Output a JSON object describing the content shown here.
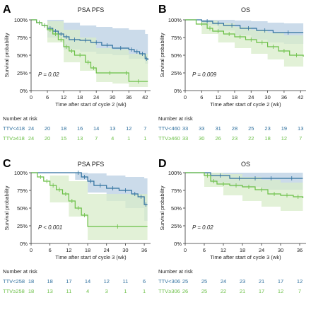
{
  "colors": {
    "high": "#2e6f9e",
    "low": "#6abf45",
    "high_band": "#b9cfe3",
    "low_band": "#d8ecc9",
    "axis": "#333333"
  },
  "risk_header": "Number at risk",
  "chart_data": [
    {
      "panel_label": "A",
      "title": "PSA PFS",
      "type": "line",
      "xlabel": "Time after start of cycle 2 (wk)",
      "ylabel": "Survival probability",
      "xlim": [
        0,
        44
      ],
      "ylim": [
        0,
        100
      ],
      "xticks": [
        "0",
        "6",
        "12",
        "18",
        "24",
        "30",
        "36",
        "42"
      ],
      "yticks": [
        "0%",
        "25%",
        "50%",
        "75%",
        "100%"
      ],
      "pvalue": "P = 0.02",
      "series": [
        {
          "name": "TTV<418",
          "color": "#2e6f9e",
          "x": [
            0,
            2,
            4,
            6,
            8,
            10,
            12,
            14,
            18,
            22,
            26,
            30,
            36,
            38,
            40,
            42,
            43
          ],
          "y": [
            100,
            96,
            92,
            88,
            84,
            80,
            76,
            72,
            71,
            68,
            64,
            60,
            58,
            55,
            52,
            45,
            43
          ],
          "band": [
            [
              0,
              100,
              100
            ],
            [
              6,
              100,
              75
            ],
            [
              12,
              96,
              58
            ],
            [
              18,
              92,
              55
            ],
            [
              24,
              90,
              52
            ],
            [
              30,
              88,
              50
            ],
            [
              36,
              86,
              45
            ],
            [
              42,
              80,
              38
            ],
            [
              43,
              80,
              30
            ]
          ]
        },
        {
          "name": "TTV≥418",
          "color": "#6abf45",
          "x": [
            0,
            2,
            4,
            6,
            8,
            10,
            12,
            14,
            16,
            20,
            22,
            24,
            34,
            36,
            43
          ],
          "y": [
            100,
            96,
            92,
            86,
            80,
            72,
            62,
            56,
            50,
            40,
            32,
            25,
            25,
            13,
            13
          ],
          "band": [
            [
              0,
              100,
              100
            ],
            [
              6,
              98,
              68
            ],
            [
              12,
              86,
              40
            ],
            [
              18,
              75,
              28
            ],
            [
              24,
              60,
              12
            ],
            [
              30,
              58,
              10
            ],
            [
              36,
              52,
              5
            ],
            [
              43,
              50,
              5
            ]
          ]
        }
      ],
      "risk": {
        "xs": [
          0,
          6,
          12,
          18,
          24,
          30,
          36,
          42
        ],
        "rows": [
          {
            "label": "TTV<418",
            "values": [
              "24",
              "20",
              "18",
              "16",
              "14",
              "13",
              "12",
              "7"
            ]
          },
          {
            "label": "TTV≥418",
            "values": [
              "24",
              "20",
              "15",
              "13",
              "7",
              "4",
              "1",
              "1"
            ]
          }
        ]
      }
    },
    {
      "panel_label": "B",
      "title": "OS",
      "type": "line",
      "xlabel": "Time after start of cycle 2 (wk)",
      "ylabel": "Survival probability",
      "xlim": [
        0,
        44
      ],
      "ylim": [
        0,
        100
      ],
      "xticks": [
        "0",
        "6",
        "12",
        "18",
        "24",
        "30",
        "36",
        "42"
      ],
      "yticks": [
        "0%",
        "25%",
        "50%",
        "75%",
        "100%"
      ],
      "pvalue": "P = 0.009",
      "series": [
        {
          "name": "TTV<460",
          "color": "#2e6f9e",
          "x": [
            0,
            6,
            10,
            14,
            20,
            26,
            32,
            43
          ],
          "y": [
            100,
            98,
            95,
            92,
            88,
            85,
            82,
            82
          ],
          "band": [
            [
              0,
              100,
              100
            ],
            [
              6,
              100,
              92
            ],
            [
              12,
              100,
              85
            ],
            [
              18,
              99,
              78
            ],
            [
              24,
              98,
              72
            ],
            [
              30,
              96,
              68
            ],
            [
              36,
              95,
              66
            ],
            [
              43,
              95,
              66
            ]
          ]
        },
        {
          "name": "TTV≥460",
          "color": "#6abf45",
          "x": [
            0,
            4,
            8,
            10,
            14,
            18,
            22,
            26,
            30,
            34,
            38,
            43
          ],
          "y": [
            100,
            94,
            88,
            84,
            80,
            76,
            72,
            68,
            62,
            56,
            50,
            48
          ],
          "band": [
            [
              0,
              100,
              100
            ],
            [
              6,
              99,
              80
            ],
            [
              12,
              95,
              68
            ],
            [
              18,
              90,
              60
            ],
            [
              24,
              86,
              52
            ],
            [
              30,
              82,
              44
            ],
            [
              36,
              78,
              34
            ],
            [
              43,
              76,
              30
            ]
          ]
        }
      ],
      "risk": {
        "xs": [
          0,
          6,
          12,
          18,
          24,
          30,
          36,
          42
        ],
        "rows": [
          {
            "label": "TTV<460",
            "values": [
              "33",
              "33",
              "31",
              "28",
              "25",
              "23",
              "19",
              "13"
            ]
          },
          {
            "label": "TTV≥460",
            "values": [
              "33",
              "30",
              "26",
              "23",
              "22",
              "18",
              "12",
              "7"
            ]
          }
        ]
      }
    },
    {
      "panel_label": "C",
      "title": "PSA PFS",
      "type": "line",
      "xlabel": "Time after start of cycle 3 (wk)",
      "ylabel": "Survival probability",
      "xlim": [
        0,
        38
      ],
      "ylim": [
        0,
        100
      ],
      "xticks": [
        "0",
        "6",
        "12",
        "18",
        "24",
        "30",
        "36"
      ],
      "yticks": [
        "0%",
        "25%",
        "50%",
        "75%",
        "100%"
      ],
      "pvalue": "P < 0.001",
      "series": [
        {
          "name": "TTV<258",
          "color": "#2e6f9e",
          "x": [
            0,
            14,
            16,
            18,
            20,
            24,
            28,
            32,
            34,
            36,
            37
          ],
          "y": [
            100,
            100,
            94,
            88,
            82,
            78,
            75,
            70,
            66,
            55,
            55
          ],
          "band": [
            [
              0,
              100,
              100
            ],
            [
              14,
              100,
              90
            ],
            [
              18,
              99,
              72
            ],
            [
              24,
              96,
              60
            ],
            [
              30,
              94,
              50
            ],
            [
              36,
              92,
              32
            ],
            [
              37,
              92,
              30
            ]
          ]
        },
        {
          "name": "TTV≥258",
          "color": "#6abf45",
          "x": [
            0,
            2,
            4,
            6,
            8,
            10,
            12,
            14,
            16,
            18,
            37
          ],
          "y": [
            100,
            94,
            88,
            82,
            76,
            70,
            60,
            50,
            40,
            24,
            24
          ],
          "band": [
            [
              0,
              100,
              100
            ],
            [
              6,
              96,
              58
            ],
            [
              12,
              88,
              38
            ],
            [
              18,
              70,
              5
            ],
            [
              24,
              70,
              5
            ],
            [
              30,
              70,
              5
            ],
            [
              37,
              70,
              5
            ]
          ]
        }
      ],
      "risk": {
        "xs": [
          0,
          6,
          12,
          18,
          24,
          30,
          36
        ],
        "rows": [
          {
            "label": "TTV<258",
            "values": [
              "18",
              "18",
              "17",
              "14",
              "12",
              "11",
              "6"
            ]
          },
          {
            "label": "TTV≥258",
            "values": [
              "18",
              "13",
              "11",
              "4",
              "3",
              "1",
              "1"
            ]
          }
        ]
      }
    },
    {
      "panel_label": "D",
      "title": "OS",
      "type": "line",
      "xlabel": "Time after start of cycle 3 (wk)",
      "ylabel": "Survival probability",
      "xlim": [
        0,
        38
      ],
      "ylim": [
        0,
        100
      ],
      "xticks": [
        "0",
        "6",
        "12",
        "18",
        "24",
        "30",
        "36"
      ],
      "yticks": [
        "0%",
        "25%",
        "50%",
        "75%",
        "100%"
      ],
      "pvalue": "P = 0.02",
      "series": [
        {
          "name": "TTV<306",
          "color": "#2e6f9e",
          "x": [
            0,
            8,
            14,
            20,
            24,
            30,
            37
          ],
          "y": [
            100,
            96,
            92,
            92,
            92,
            92,
            92
          ],
          "band": [
            [
              0,
              100,
              100
            ],
            [
              8,
              100,
              86
            ],
            [
              14,
              100,
              80
            ],
            [
              24,
              100,
              76
            ],
            [
              37,
              100,
              74
            ]
          ]
        },
        {
          "name": "TTV≥306",
          "color": "#6abf45",
          "x": [
            0,
            6,
            8,
            10,
            14,
            18,
            22,
            26,
            30,
            34,
            37
          ],
          "y": [
            100,
            96,
            88,
            84,
            82,
            80,
            76,
            70,
            68,
            66,
            64
          ],
          "band": [
            [
              0,
              100,
              100
            ],
            [
              6,
              100,
              80
            ],
            [
              12,
              98,
              68
            ],
            [
              18,
              94,
              60
            ],
            [
              24,
              90,
              52
            ],
            [
              30,
              86,
              46
            ],
            [
              37,
              84,
              42
            ]
          ]
        }
      ],
      "risk": {
        "xs": [
          0,
          6,
          12,
          18,
          24,
          30,
          36
        ],
        "rows": [
          {
            "label": "TTV<306",
            "values": [
              "25",
              "25",
              "24",
              "23",
              "21",
              "17",
              "12"
            ]
          },
          {
            "label": "TTV≥306",
            "values": [
              "26",
              "25",
              "22",
              "21",
              "17",
              "12",
              "7"
            ]
          }
        ]
      }
    }
  ]
}
